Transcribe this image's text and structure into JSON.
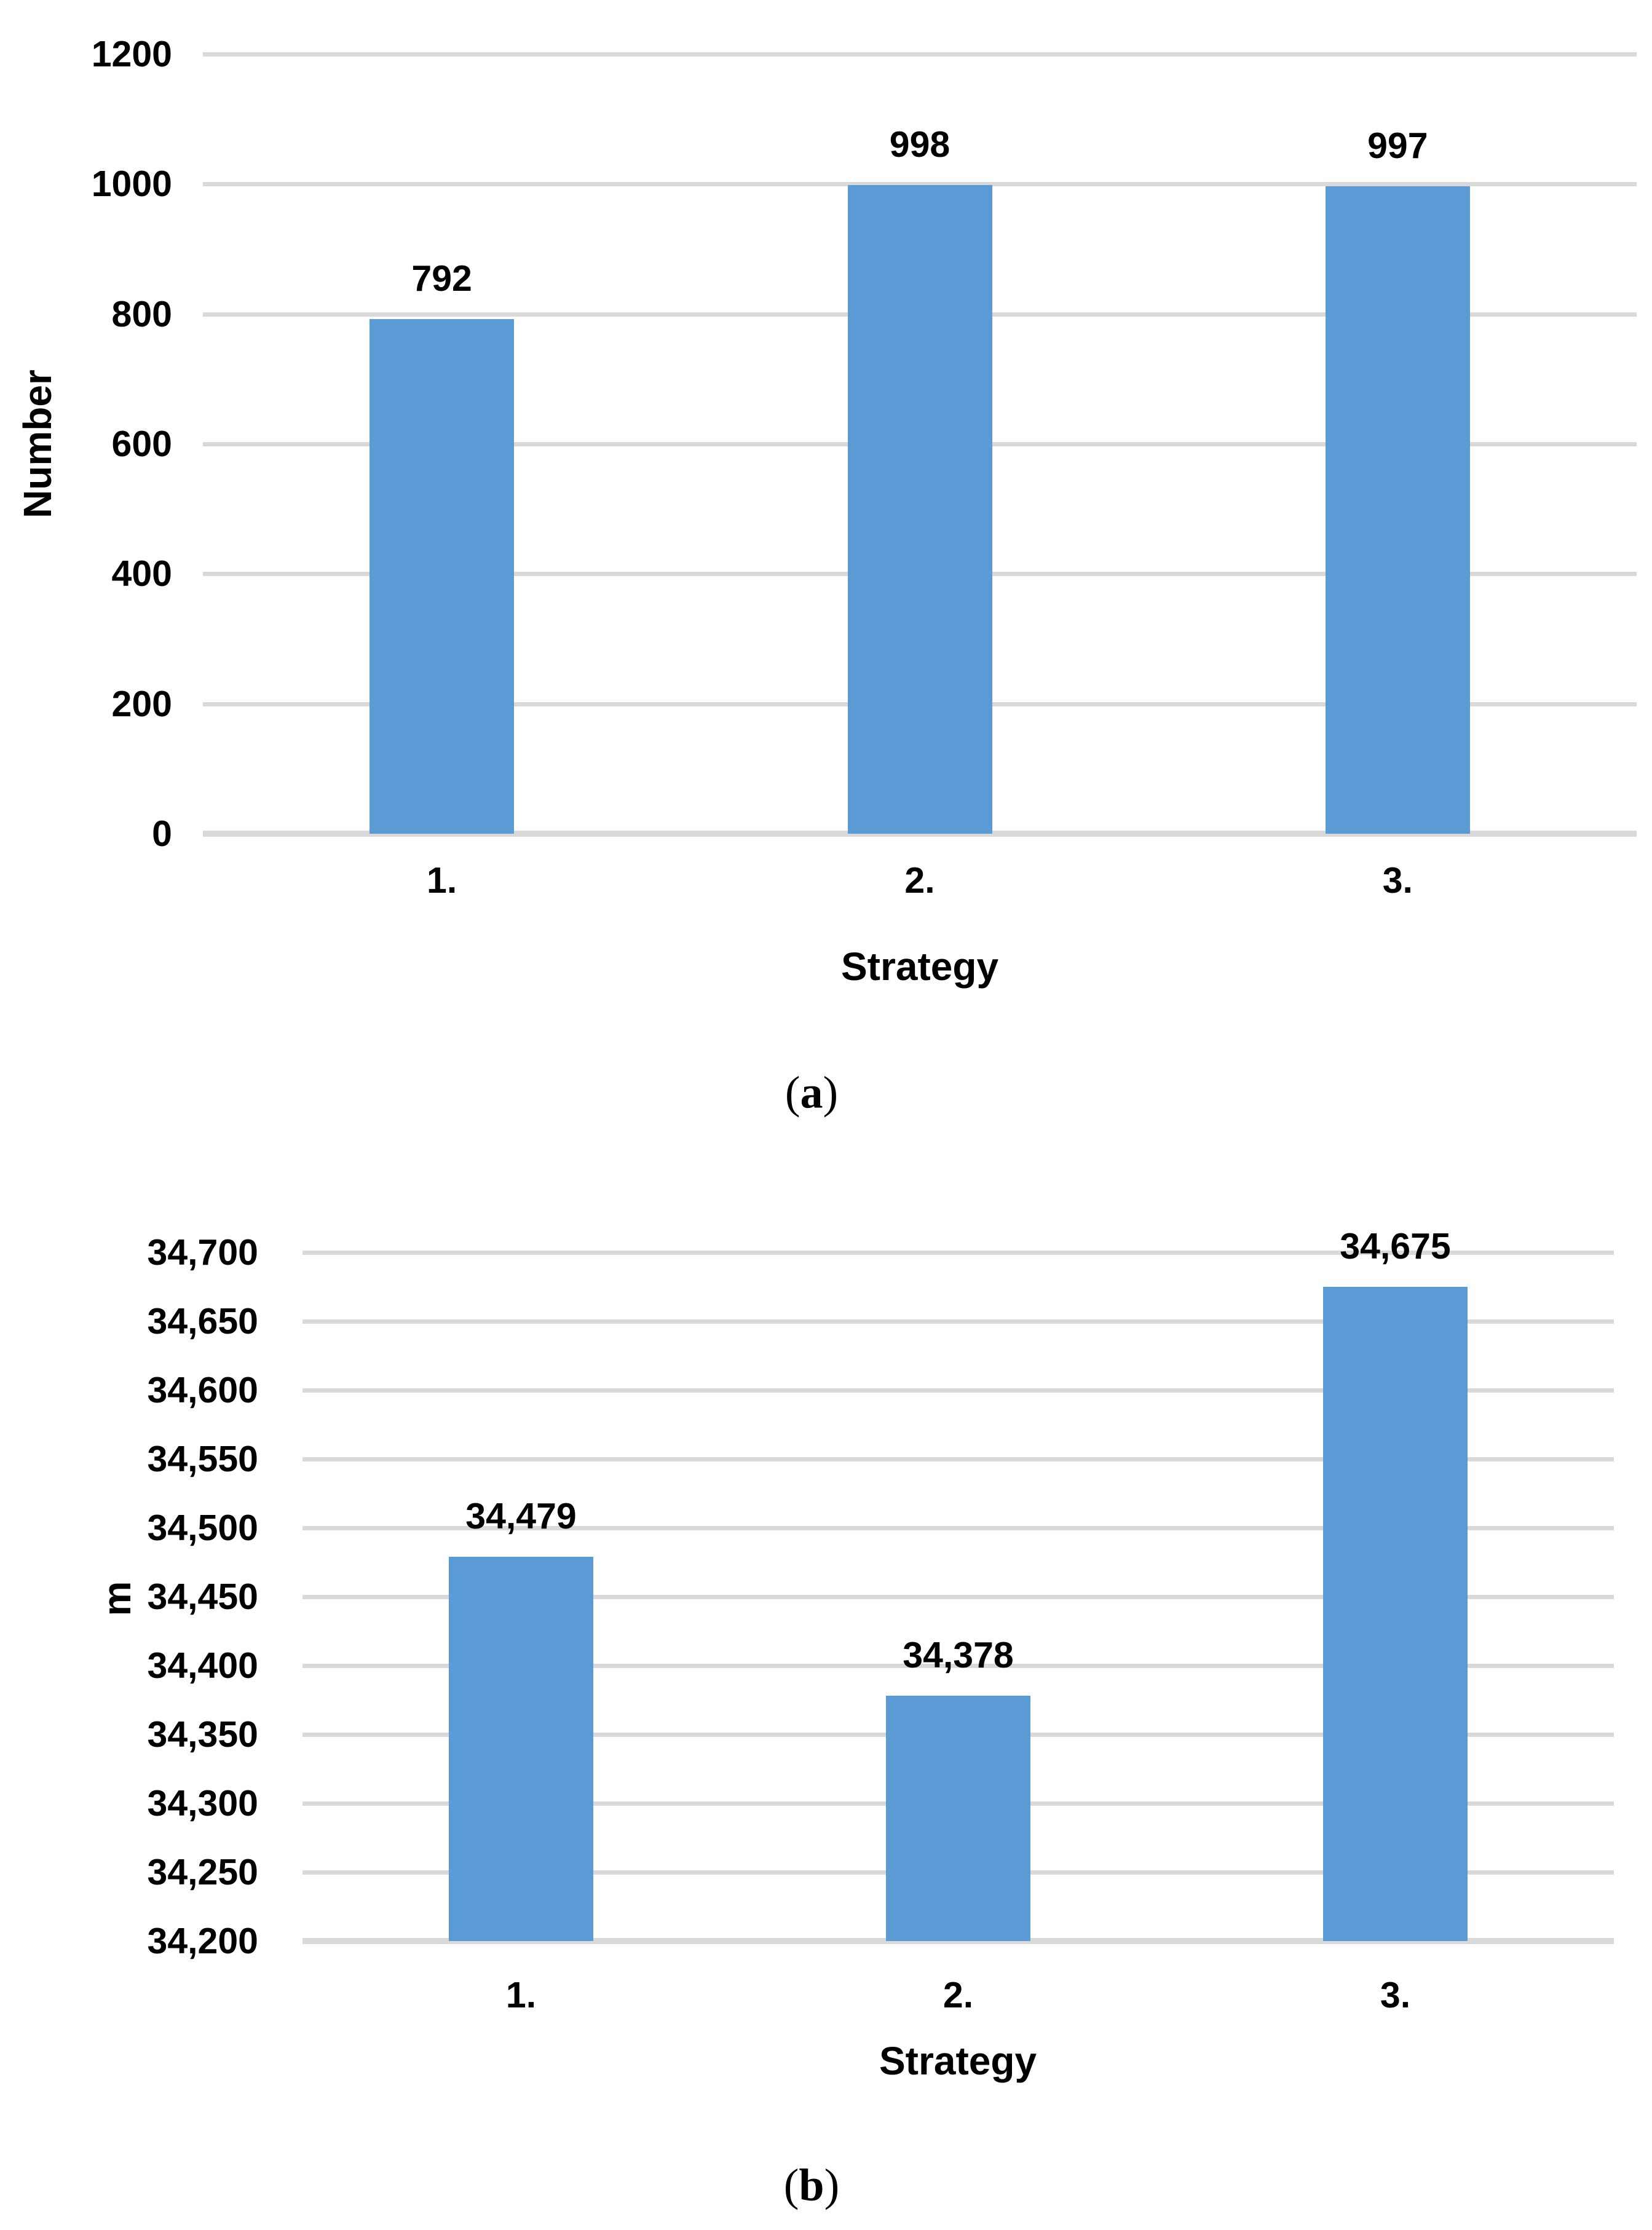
{
  "figure": {
    "background": "#ffffff",
    "colors": {
      "bar_fill": "#5B9BD5",
      "gridline": "#D9D9D9",
      "axis_line": "#D9D9D9",
      "text": "#000000"
    }
  },
  "chart_data": [
    {
      "id": "a",
      "type": "bar",
      "title": "",
      "xlabel": "Strategy",
      "ylabel": "Number",
      "categories": [
        "1.",
        "2.",
        "3."
      ],
      "values": [
        792,
        998,
        997
      ],
      "value_labels": [
        "792",
        "998",
        "997"
      ],
      "ylim": [
        0,
        1200
      ],
      "ytick_step": 200,
      "ytick_labels": [
        "0",
        "200",
        "400",
        "600",
        "800",
        "1000",
        "1200"
      ],
      "grid": true,
      "legend": "none",
      "caption": {
        "open": "(",
        "letter": "a",
        "close": ")"
      }
    },
    {
      "id": "b",
      "type": "bar",
      "title": "",
      "xlabel": "Strategy",
      "ylabel": "m",
      "categories": [
        "1.",
        "2.",
        "3."
      ],
      "values": [
        34479,
        34378,
        34675
      ],
      "value_labels": [
        "34,479",
        "34,378",
        "34,675"
      ],
      "ylim": [
        34200,
        34700
      ],
      "ytick_step": 50,
      "ytick_labels": [
        "34,200",
        "34,250",
        "34,300",
        "34,350",
        "34,400",
        "34,450",
        "34,500",
        "34,550",
        "34,600",
        "34,650",
        "34,700"
      ],
      "grid": true,
      "legend": "none",
      "caption": {
        "open": "(",
        "letter": "b",
        "close": ")"
      }
    }
  ]
}
